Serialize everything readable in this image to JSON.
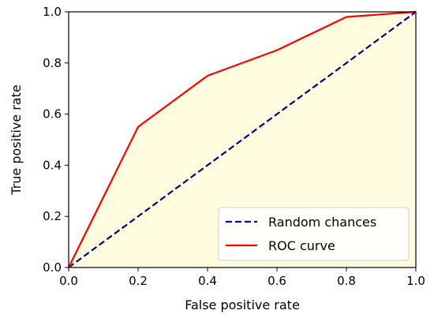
{
  "chart_data": {
    "type": "line",
    "title": "",
    "xlabel": "False positive rate",
    "ylabel": "True positive rate",
    "xlim": [
      0.0,
      1.0
    ],
    "ylim": [
      0.0,
      1.0
    ],
    "xticks": [
      "0.0",
      "0.2",
      "0.4",
      "0.6",
      "0.8",
      "1.0"
    ],
    "yticks": [
      "0.0",
      "0.2",
      "0.4",
      "0.6",
      "0.8",
      "1.0"
    ],
    "grid": false,
    "legend_position": "bottom-right",
    "fill_under_roc": true,
    "series": [
      {
        "name": "Random chances",
        "style": "dashed",
        "color": "#000080",
        "x": [
          0.0,
          1.0
        ],
        "y": [
          0.0,
          1.0
        ]
      },
      {
        "name": "ROC curve",
        "style": "solid",
        "color": "#ff0000",
        "x": [
          0.0,
          0.2,
          0.4,
          0.6,
          0.8,
          1.0
        ],
        "y": [
          0.0,
          0.55,
          0.75,
          0.85,
          0.98,
          1.0
        ]
      }
    ],
    "colors": {
      "fill": "#fffce0",
      "axes": "#000000"
    }
  }
}
